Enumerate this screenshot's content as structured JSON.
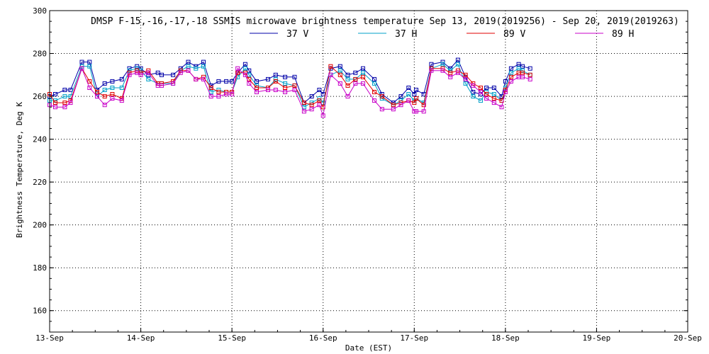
{
  "chart_data": {
    "type": "line",
    "title": "DMSP F-15,-16,-17,-18 SSMIS microwave brightness temperature Sep 13, 2019(2019256) - Sep 20, 2019(2019263)",
    "xlabel": "Date (EST)",
    "ylabel": "Brightness Temperature, Deg K",
    "xlim": [
      "2019-09-13",
      "2019-09-20"
    ],
    "ylim": [
      150,
      300
    ],
    "yticks": [
      160,
      180,
      200,
      220,
      240,
      260,
      280,
      300
    ],
    "xtick_labels": [
      "13-Sep",
      "14-Sep",
      "15-Sep",
      "16-Sep",
      "17-Sep",
      "18-Sep",
      "19-Sep",
      "20-Sep"
    ],
    "grid": true,
    "legend": "top-center",
    "series": [
      {
        "name": "37 V",
        "color": "#0000a8",
        "x": [
          "2019-09-13 00:00",
          "2019-09-13 01:30",
          "2019-09-13 04:00",
          "2019-09-13 05:30",
          "2019-09-13 08:30",
          "2019-09-13 10:30",
          "2019-09-13 12:30",
          "2019-09-13 14:30",
          "2019-09-13 16:30",
          "2019-09-13 19:00",
          "2019-09-13 21:00",
          "2019-09-13 23:00",
          "2019-09-14 00:00",
          "2019-09-14 02:00",
          "2019-09-14 04:30",
          "2019-09-14 05:30",
          "2019-09-14 08:30",
          "2019-09-14 10:30",
          "2019-09-14 12:30",
          "2019-09-14 14:30",
          "2019-09-14 16:30",
          "2019-09-14 18:30",
          "2019-09-14 20:30",
          "2019-09-14 22:30",
          "2019-09-15 00:00",
          "2019-09-15 01:30",
          "2019-09-15 03:30",
          "2019-09-15 04:30",
          "2019-09-15 06:30",
          "2019-09-15 09:30",
          "2019-09-15 11:30",
          "2019-09-15 14:00",
          "2019-09-15 16:30",
          "2019-09-15 19:00",
          "2019-09-15 21:00",
          "2019-09-15 23:00",
          "2019-09-16 00:00",
          "2019-09-16 02:00",
          "2019-09-16 04:30",
          "2019-09-16 06:30",
          "2019-09-16 08:30",
          "2019-09-16 10:30",
          "2019-09-16 13:30",
          "2019-09-16 15:30",
          "2019-09-16 18:30",
          "2019-09-16 20:30",
          "2019-09-16 22:30",
          "2019-09-17 00:00",
          "2019-09-17 00:30",
          "2019-09-17 02:30",
          "2019-09-17 04:30",
          "2019-09-17 07:30",
          "2019-09-17 09:30",
          "2019-09-17 11:30",
          "2019-09-17 13:30",
          "2019-09-17 15:30",
          "2019-09-17 17:30",
          "2019-09-17 19:00",
          "2019-09-17 21:00",
          "2019-09-17 23:00",
          "2019-09-18 00:00",
          "2019-09-18 01:30",
          "2019-09-18 03:30",
          "2019-09-18 04:30",
          "2019-09-18 06:30"
        ],
        "y": [
          260,
          261,
          263,
          263,
          276,
          276,
          263,
          266,
          267,
          268,
          273,
          274,
          273,
          270,
          271,
          270,
          270,
          273,
          276,
          274,
          276,
          265,
          267,
          267,
          267,
          271,
          275,
          272,
          267,
          268,
          270,
          269,
          269,
          257,
          260,
          263,
          261,
          273,
          274,
          270,
          271,
          273,
          268,
          261,
          257,
          260,
          264,
          261,
          263,
          261,
          275,
          276,
          273,
          277,
          269,
          262,
          261,
          264,
          264,
          260,
          267,
          273,
          275,
          274,
          273
        ]
      },
      {
        "name": "37 H",
        "color": "#00a0c8",
        "x": [
          "2019-09-13 00:00",
          "2019-09-13 01:30",
          "2019-09-13 04:00",
          "2019-09-13 05:30",
          "2019-09-13 08:30",
          "2019-09-13 10:30",
          "2019-09-13 12:30",
          "2019-09-13 14:30",
          "2019-09-13 16:30",
          "2019-09-13 19:00",
          "2019-09-13 21:00",
          "2019-09-13 23:00",
          "2019-09-14 00:00",
          "2019-09-14 02:00",
          "2019-09-14 04:30",
          "2019-09-14 05:30",
          "2019-09-14 08:30",
          "2019-09-14 10:30",
          "2019-09-14 12:30",
          "2019-09-14 14:30",
          "2019-09-14 16:30",
          "2019-09-14 18:30",
          "2019-09-14 20:30",
          "2019-09-14 22:30",
          "2019-09-15 00:00",
          "2019-09-15 01:30",
          "2019-09-15 03:30",
          "2019-09-15 04:30",
          "2019-09-15 06:30",
          "2019-09-15 09:30",
          "2019-09-15 11:30",
          "2019-09-15 14:00",
          "2019-09-15 16:30",
          "2019-09-15 19:00",
          "2019-09-15 21:00",
          "2019-09-15 23:00",
          "2019-09-16 00:00",
          "2019-09-16 02:00",
          "2019-09-16 04:30",
          "2019-09-16 06:30",
          "2019-09-16 08:30",
          "2019-09-16 10:30",
          "2019-09-16 13:30",
          "2019-09-16 15:30",
          "2019-09-16 18:30",
          "2019-09-16 20:30",
          "2019-09-16 22:30",
          "2019-09-17 00:00",
          "2019-09-17 00:30",
          "2019-09-17 02:30",
          "2019-09-17 04:30",
          "2019-09-17 07:30",
          "2019-09-17 09:30",
          "2019-09-17 11:30",
          "2019-09-17 13:30",
          "2019-09-17 15:30",
          "2019-09-17 17:30",
          "2019-09-17 19:00",
          "2019-09-17 21:00",
          "2019-09-17 23:00",
          "2019-09-18 00:00",
          "2019-09-18 01:30",
          "2019-09-18 03:30",
          "2019-09-18 04:30",
          "2019-09-18 06:30"
        ],
        "y": [
          258,
          258,
          260,
          260,
          274,
          274,
          260,
          263,
          264,
          264,
          272,
          273,
          272,
          268,
          266,
          266,
          266,
          272,
          274,
          273,
          274,
          262,
          263,
          262,
          262,
          269,
          273,
          270,
          265,
          264,
          268,
          266,
          265,
          255,
          257,
          259,
          257,
          270,
          272,
          268,
          268,
          271,
          266,
          259,
          256,
          258,
          261,
          258,
          259,
          257,
          273,
          275,
          272,
          275,
          266,
          260,
          258,
          262,
          261,
          258,
          264,
          271,
          273,
          272,
          270
        ]
      },
      {
        "name": "89 V",
        "color": "#e00000",
        "x": [
          "2019-09-13 00:00",
          "2019-09-13 01:30",
          "2019-09-13 04:00",
          "2019-09-13 05:30",
          "2019-09-13 08:30",
          "2019-09-13 10:30",
          "2019-09-13 12:30",
          "2019-09-13 14:30",
          "2019-09-13 16:30",
          "2019-09-13 19:00",
          "2019-09-13 21:00",
          "2019-09-13 23:00",
          "2019-09-14 00:00",
          "2019-09-14 02:00",
          "2019-09-14 04:30",
          "2019-09-14 05:30",
          "2019-09-14 08:30",
          "2019-09-14 10:30",
          "2019-09-14 12:30",
          "2019-09-14 14:30",
          "2019-09-14 16:30",
          "2019-09-14 18:30",
          "2019-09-14 20:30",
          "2019-09-14 22:30",
          "2019-09-15 00:00",
          "2019-09-15 01:30",
          "2019-09-15 03:30",
          "2019-09-15 04:30",
          "2019-09-15 06:30",
          "2019-09-15 09:30",
          "2019-09-15 11:30",
          "2019-09-15 14:00",
          "2019-09-15 16:30",
          "2019-09-15 19:00",
          "2019-09-15 21:00",
          "2019-09-15 23:00",
          "2019-09-16 00:00",
          "2019-09-16 02:00",
          "2019-09-16 04:30",
          "2019-09-16 06:30",
          "2019-09-16 08:30",
          "2019-09-16 10:30",
          "2019-09-16 13:30",
          "2019-09-16 15:30",
          "2019-09-16 18:30",
          "2019-09-16 20:30",
          "2019-09-16 22:30",
          "2019-09-17 00:00",
          "2019-09-17 00:30",
          "2019-09-17 02:30",
          "2019-09-17 04:30",
          "2019-09-17 07:30",
          "2019-09-17 09:30",
          "2019-09-17 11:30",
          "2019-09-17 13:30",
          "2019-09-17 15:30",
          "2019-09-17 17:30",
          "2019-09-17 19:00",
          "2019-09-17 21:00",
          "2019-09-17 23:00",
          "2019-09-18 00:00",
          "2019-09-18 01:30",
          "2019-09-18 03:30",
          "2019-09-18 04:30",
          "2019-09-18 06:30"
        ],
        "y": [
          261,
          257,
          257,
          258,
          273,
          267,
          262,
          260,
          261,
          259,
          271,
          272,
          271,
          272,
          266,
          266,
          267,
          272,
          272,
          268,
          269,
          264,
          262,
          262,
          262,
          271,
          271,
          268,
          264,
          264,
          267,
          264,
          265,
          257,
          256,
          258,
          255,
          274,
          270,
          265,
          268,
          269,
          262,
          260,
          256,
          257,
          258,
          257,
          259,
          256,
          273,
          273,
          271,
          272,
          270,
          266,
          264,
          261,
          259,
          258,
          263,
          269,
          271,
          271,
          270
        ]
      },
      {
        "name": "89 H",
        "color": "#c800c8",
        "x": [
          "2019-09-13 00:00",
          "2019-09-13 01:30",
          "2019-09-13 04:00",
          "2019-09-13 05:30",
          "2019-09-13 08:30",
          "2019-09-13 10:30",
          "2019-09-13 12:30",
          "2019-09-13 14:30",
          "2019-09-13 16:30",
          "2019-09-13 19:00",
          "2019-09-13 21:00",
          "2019-09-13 23:00",
          "2019-09-14 00:00",
          "2019-09-14 02:00",
          "2019-09-14 04:30",
          "2019-09-14 05:30",
          "2019-09-14 08:30",
          "2019-09-14 10:30",
          "2019-09-14 12:30",
          "2019-09-14 14:30",
          "2019-09-14 16:30",
          "2019-09-14 18:30",
          "2019-09-14 20:30",
          "2019-09-14 22:30",
          "2019-09-15 00:00",
          "2019-09-15 01:30",
          "2019-09-15 03:30",
          "2019-09-15 04:30",
          "2019-09-15 06:30",
          "2019-09-15 09:30",
          "2019-09-15 11:30",
          "2019-09-15 14:00",
          "2019-09-15 16:30",
          "2019-09-15 19:00",
          "2019-09-15 21:00",
          "2019-09-15 23:00",
          "2019-09-16 00:00",
          "2019-09-16 02:00",
          "2019-09-16 04:30",
          "2019-09-16 06:30",
          "2019-09-16 08:30",
          "2019-09-16 10:30",
          "2019-09-16 13:30",
          "2019-09-16 15:30",
          "2019-09-16 18:30",
          "2019-09-16 20:30",
          "2019-09-16 22:30",
          "2019-09-17 00:00",
          "2019-09-17 00:30",
          "2019-09-17 02:30",
          "2019-09-17 04:30",
          "2019-09-17 07:30",
          "2019-09-17 09:30",
          "2019-09-17 11:30",
          "2019-09-17 13:30",
          "2019-09-17 15:30",
          "2019-09-17 17:30",
          "2019-09-17 19:00",
          "2019-09-17 21:00",
          "2019-09-17 23:00",
          "2019-09-18 00:00",
          "2019-09-18 01:30",
          "2019-09-18 03:30",
          "2019-09-18 04:30",
          "2019-09-18 06:30"
        ],
        "y": [
          256,
          255,
          255,
          257,
          273,
          264,
          260,
          256,
          259,
          258,
          270,
          271,
          270,
          271,
          265,
          265,
          266,
          271,
          272,
          268,
          268,
          260,
          260,
          261,
          261,
          273,
          270,
          266,
          262,
          263,
          263,
          262,
          263,
          253,
          254,
          256,
          251,
          270,
          266,
          260,
          266,
          266,
          258,
          254,
          254,
          256,
          258,
          253,
          253,
          253,
          272,
          272,
          269,
          271,
          268,
          265,
          262,
          259,
          257,
          255,
          262,
          267,
          269,
          269,
          268
        ]
      }
    ]
  }
}
